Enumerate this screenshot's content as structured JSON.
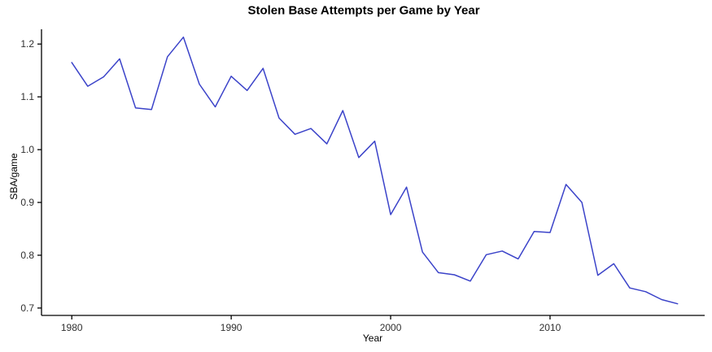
{
  "chart_data": {
    "type": "line",
    "title": "Stolen Base Attempts per Game by Year",
    "xlabel": "Year",
    "ylabel": "SBA/game",
    "x": [
      1980,
      1981,
      1982,
      1983,
      1984,
      1985,
      1986,
      1987,
      1988,
      1989,
      1990,
      1991,
      1992,
      1993,
      1994,
      1995,
      1996,
      1997,
      1998,
      1999,
      2000,
      2001,
      2002,
      2003,
      2004,
      2005,
      2006,
      2007,
      2008,
      2009,
      2010,
      2011,
      2012,
      2013,
      2014,
      2015,
      2016,
      2017,
      2018
    ],
    "series": [
      {
        "name": "SBA/game",
        "values": [
          1.165,
          1.12,
          1.138,
          1.172,
          1.079,
          1.076,
          1.176,
          1.213,
          1.124,
          1.081,
          1.139,
          1.112,
          1.154,
          1.06,
          1.029,
          1.04,
          1.011,
          1.074,
          0.985,
          1.016,
          0.877,
          0.929,
          0.806,
          0.767,
          0.763,
          0.751,
          0.801,
          0.808,
          0.793,
          0.845,
          0.843,
          0.934,
          0.9,
          0.762,
          0.784,
          0.738,
          0.731,
          0.716,
          0.708
        ]
      }
    ],
    "xlim": [
      1978.1,
      2019.7
    ],
    "ylim": [
      0.686,
      1.228
    ],
    "xticks": [
      1980,
      1990,
      2000,
      2010
    ],
    "yticks": [
      0.7,
      0.8,
      0.9,
      1.0,
      1.1,
      1.2
    ],
    "grid": false,
    "legend_position": "none",
    "line_color": "#3b43c9",
    "axis_color": "#000000",
    "tick_label_color": "#303030"
  }
}
